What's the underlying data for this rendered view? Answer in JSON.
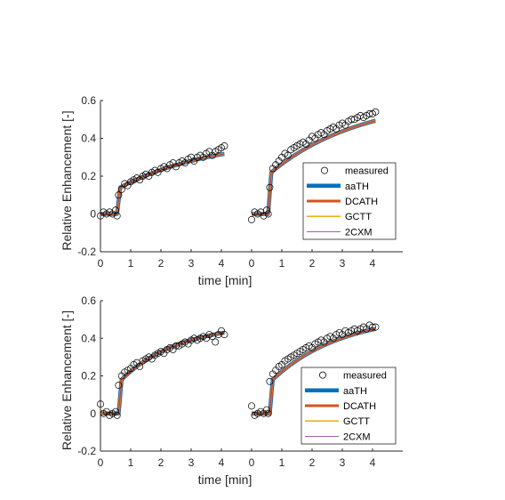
{
  "colors": {
    "marker_edge": "#000000",
    "aaTH": "#0072BD",
    "DCATH": "#D95319",
    "GCTT": "#EDB120",
    "2CXM": "#7E2F8E",
    "axis": "#262626"
  },
  "chart_data": [
    {
      "type": "line",
      "panel": "top",
      "xlabel": "time [min]",
      "ylabel": "Relative Enhancement [-]",
      "xlim": [
        0,
        10
      ],
      "ylim": [
        -0.2,
        0.6
      ],
      "xticks": [
        "0",
        "1",
        "2",
        "3",
        "4",
        "0",
        "1",
        "2",
        "3",
        "4"
      ],
      "yticks": [
        "-0.2",
        "0",
        "0.2",
        "0.4",
        "0.6"
      ],
      "legend": {
        "placement": "bottom-right",
        "entries": [
          "measured",
          "aaTH",
          "DCATH",
          "GCTT",
          "2CXM"
        ]
      },
      "curves": [
        {
          "onset": 0.55,
          "base": 0.0,
          "jump": 0.14,
          "A": 0.27,
          "tau": 3.2,
          "offset": 0.0
        },
        {
          "onset": 0.55,
          "base": 0.0,
          "jump": 0.22,
          "A": 0.4,
          "tau": 3.0,
          "offset": 5.0
        }
      ],
      "series": [
        {
          "name": "measured",
          "x": [
            0.0,
            0.1,
            0.2,
            0.3,
            0.4,
            0.5,
            0.55,
            0.6,
            0.7,
            0.8,
            0.9,
            1.0,
            1.1,
            1.2,
            1.3,
            1.4,
            1.5,
            1.6,
            1.7,
            1.8,
            1.9,
            2.0,
            2.1,
            2.2,
            2.3,
            2.4,
            2.5,
            2.6,
            2.7,
            2.8,
            2.9,
            3.0,
            3.1,
            3.2,
            3.3,
            3.4,
            3.5,
            3.6,
            3.7,
            3.8,
            3.9,
            4.0,
            4.1,
            5.0,
            5.1,
            5.2,
            5.3,
            5.4,
            5.5,
            5.55,
            5.6,
            5.7,
            5.8,
            5.9,
            6.0,
            6.1,
            6.2,
            6.3,
            6.4,
            6.5,
            6.6,
            6.7,
            6.8,
            6.9,
            7.0,
            7.1,
            7.2,
            7.3,
            7.4,
            7.5,
            7.6,
            7.7,
            7.8,
            7.9,
            8.0,
            8.1,
            8.2,
            8.3,
            8.4,
            8.5,
            8.6,
            8.7,
            8.8,
            8.9,
            9.0,
            9.1
          ],
          "y": [
            -0.01,
            0.01,
            0.0,
            0.01,
            0.0,
            0.02,
            -0.01,
            0.1,
            0.13,
            0.16,
            0.15,
            0.17,
            0.18,
            0.19,
            0.18,
            0.2,
            0.21,
            0.2,
            0.22,
            0.23,
            0.22,
            0.24,
            0.25,
            0.24,
            0.26,
            0.27,
            0.25,
            0.27,
            0.28,
            0.27,
            0.29,
            0.3,
            0.28,
            0.3,
            0.31,
            0.3,
            0.32,
            0.33,
            0.31,
            0.33,
            0.34,
            0.35,
            0.36,
            -0.03,
            0.01,
            0.0,
            0.01,
            -0.01,
            0.02,
            0.0,
            0.14,
            0.24,
            0.26,
            0.28,
            0.3,
            0.32,
            0.31,
            0.34,
            0.35,
            0.36,
            0.37,
            0.38,
            0.37,
            0.39,
            0.41,
            0.4,
            0.42,
            0.43,
            0.42,
            0.44,
            0.45,
            0.46,
            0.45,
            0.47,
            0.48,
            0.47,
            0.49,
            0.5,
            0.5,
            0.51,
            0.52,
            0.51,
            0.52,
            0.53,
            0.53,
            0.54
          ]
        },
        {
          "name": "aaTH"
        },
        {
          "name": "DCATH"
        },
        {
          "name": "GCTT"
        },
        {
          "name": "2CXM"
        }
      ]
    },
    {
      "type": "line",
      "panel": "bottom",
      "xlabel": "time [min]",
      "ylabel": "Relative Enhancement [-]",
      "xlim": [
        0,
        10
      ],
      "ylim": [
        -0.2,
        0.6
      ],
      "xticks": [
        "0",
        "1",
        "2",
        "3",
        "4",
        "0",
        "1",
        "2",
        "3",
        "4"
      ],
      "yticks": [
        "-0.2",
        "0",
        "0.2",
        "0.4",
        "0.6"
      ],
      "legend": {
        "placement": "bottom-right",
        "entries": [
          "measured",
          "aaTH",
          "DCATH",
          "GCTT",
          "2CXM"
        ]
      },
      "curves": [
        {
          "onset": 0.6,
          "base": 0.0,
          "jump": 0.18,
          "A": 0.3,
          "tau": 1.9,
          "offset": 0.0
        },
        {
          "onset": 0.6,
          "base": 0.0,
          "jump": 0.18,
          "A": 0.35,
          "tau": 2.3,
          "offset": 5.0
        }
      ],
      "series": [
        {
          "name": "measured",
          "x": [
            0.0,
            0.1,
            0.2,
            0.3,
            0.4,
            0.5,
            0.55,
            0.6,
            0.7,
            0.8,
            0.9,
            1.0,
            1.1,
            1.2,
            1.3,
            1.4,
            1.5,
            1.6,
            1.7,
            1.8,
            1.9,
            2.0,
            2.1,
            2.2,
            2.3,
            2.4,
            2.5,
            2.6,
            2.7,
            2.8,
            2.9,
            3.0,
            3.1,
            3.2,
            3.3,
            3.4,
            3.5,
            3.6,
            3.7,
            3.8,
            3.9,
            4.0,
            4.1,
            5.0,
            5.1,
            5.2,
            5.3,
            5.4,
            5.5,
            5.55,
            5.6,
            5.7,
            5.8,
            5.9,
            6.0,
            6.1,
            6.2,
            6.3,
            6.4,
            6.5,
            6.6,
            6.7,
            6.8,
            6.9,
            7.0,
            7.1,
            7.2,
            7.3,
            7.4,
            7.5,
            7.6,
            7.7,
            7.8,
            7.9,
            8.0,
            8.1,
            8.2,
            8.3,
            8.4,
            8.5,
            8.6,
            8.7,
            8.8,
            8.9,
            9.0,
            9.1
          ],
          "y": [
            0.05,
            0.0,
            0.01,
            -0.01,
            0.0,
            0.01,
            -0.01,
            0.15,
            0.2,
            0.22,
            0.23,
            0.24,
            0.26,
            0.27,
            0.25,
            0.28,
            0.29,
            0.3,
            0.29,
            0.31,
            0.32,
            0.33,
            0.32,
            0.34,
            0.35,
            0.34,
            0.36,
            0.36,
            0.37,
            0.38,
            0.37,
            0.39,
            0.4,
            0.39,
            0.4,
            0.41,
            0.4,
            0.42,
            0.41,
            0.38,
            0.42,
            0.44,
            0.42,
            0.04,
            -0.01,
            0.0,
            0.01,
            0.0,
            0.02,
            0.0,
            0.17,
            0.21,
            0.23,
            0.25,
            0.26,
            0.28,
            0.29,
            0.3,
            0.31,
            0.32,
            0.33,
            0.34,
            0.35,
            0.36,
            0.35,
            0.37,
            0.38,
            0.39,
            0.38,
            0.4,
            0.41,
            0.4,
            0.42,
            0.43,
            0.42,
            0.44,
            0.43,
            0.44,
            0.45,
            0.44,
            0.45,
            0.46,
            0.45,
            0.47,
            0.46,
            0.46
          ]
        },
        {
          "name": "aaTH"
        },
        {
          "name": "DCATH"
        },
        {
          "name": "GCTT"
        },
        {
          "name": "2CXM"
        }
      ]
    }
  ]
}
